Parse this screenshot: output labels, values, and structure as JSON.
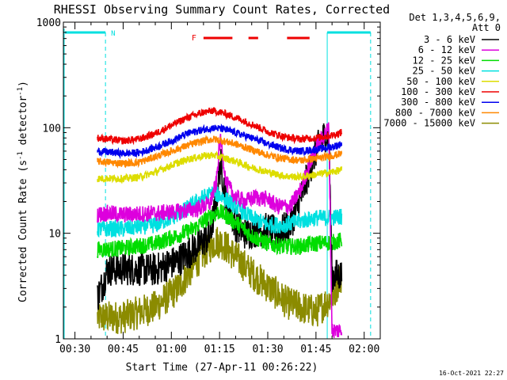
{
  "chart_data": {
    "type": "line",
    "title": "RHESSI Observing Summary Count Rates, Corrected",
    "xlabel": "Start Time (27-Apr-11 00:26:22)",
    "ylabel": "Corrected Count Rate (s",
    "ylabel_sup1": "-1",
    "ylabel_mid": " detector",
    "ylabel_sup2": "-1",
    "ylabel_end": ")",
    "yscale": "log",
    "ylim": [
      1,
      1000
    ],
    "xlim_minutes": [
      26.4,
      125.0
    ],
    "x_ticks": [
      {
        "t": 30,
        "label": "00:30"
      },
      {
        "t": 45,
        "label": "00:45"
      },
      {
        "t": 60,
        "label": "01:00"
      },
      {
        "t": 75,
        "label": "01:15"
      },
      {
        "t": 90,
        "label": "01:30"
      },
      {
        "t": 105,
        "label": "01:45"
      },
      {
        "t": 120,
        "label": "02:00"
      }
    ],
    "y_ticks": [
      {
        "v": 1,
        "label": "1"
      },
      {
        "v": 10,
        "label": "10"
      },
      {
        "v": 100,
        "label": "100"
      },
      {
        "v": 1000,
        "label": "1000"
      }
    ],
    "legend_header": [
      "Det 1,3,4,5,6,9,",
      "Att 0"
    ],
    "legend_position": "right",
    "series": [
      {
        "name": "3 - 6 keV",
        "color": "#000000",
        "points": [
          [
            37,
            2.5
          ],
          [
            39,
            3.5
          ],
          [
            40,
            4.5
          ],
          [
            45,
            4.6
          ],
          [
            55,
            4.5
          ],
          [
            62,
            5.5
          ],
          [
            68,
            7.5
          ],
          [
            72,
            9.5
          ],
          [
            74,
            20
          ],
          [
            75,
            40
          ],
          [
            75.5,
            45
          ],
          [
            77,
            20
          ],
          [
            80,
            12
          ],
          [
            83,
            10
          ],
          [
            86,
            10.5
          ],
          [
            90,
            11
          ],
          [
            93,
            10
          ],
          [
            97,
            12
          ],
          [
            100,
            20
          ],
          [
            103,
            40
          ],
          [
            105,
            60
          ],
          [
            107,
            80
          ],
          [
            109,
            90
          ],
          [
            110,
            4
          ],
          [
            113,
            4
          ]
        ]
      },
      {
        "name": "6 - 12 keV",
        "color": "#dd00dd",
        "points": [
          [
            37,
            15
          ],
          [
            40,
            15.5
          ],
          [
            45,
            15
          ],
          [
            55,
            15.5
          ],
          [
            62,
            16
          ],
          [
            68,
            17
          ],
          [
            72,
            19
          ],
          [
            74,
            30
          ],
          [
            75,
            70
          ],
          [
            75.5,
            75
          ],
          [
            77,
            30
          ],
          [
            80,
            22
          ],
          [
            83,
            20
          ],
          [
            86,
            22
          ],
          [
            90,
            21
          ],
          [
            93,
            18
          ],
          [
            97,
            18
          ],
          [
            100,
            25
          ],
          [
            103,
            45
          ],
          [
            105,
            65
          ],
          [
            107,
            80
          ],
          [
            109,
            100
          ],
          [
            110,
            1.2
          ],
          [
            113,
            1.2
          ]
        ]
      },
      {
        "name": "12 - 25 keV",
        "color": "#00dd00",
        "points": [
          [
            37,
            7
          ],
          [
            45,
            7.2
          ],
          [
            55,
            8
          ],
          [
            62,
            9.5
          ],
          [
            67,
            11
          ],
          [
            70,
            13
          ],
          [
            73,
            15
          ],
          [
            75,
            16
          ],
          [
            78,
            14
          ],
          [
            81,
            12
          ],
          [
            85,
            9.5
          ],
          [
            90,
            8
          ],
          [
            95,
            7.5
          ],
          [
            100,
            7.5
          ],
          [
            105,
            8
          ],
          [
            110,
            8.2
          ],
          [
            113,
            8.5
          ]
        ]
      },
      {
        "name": "25 - 50 keV",
        "color": "#00e0e0",
        "points": [
          [
            37,
            11
          ],
          [
            45,
            11
          ],
          [
            55,
            12
          ],
          [
            62,
            15
          ],
          [
            67,
            19
          ],
          [
            70,
            22
          ],
          [
            73,
            24
          ],
          [
            75,
            23
          ],
          [
            78,
            20
          ],
          [
            81,
            17
          ],
          [
            85,
            14
          ],
          [
            90,
            12
          ],
          [
            95,
            12
          ],
          [
            100,
            13
          ],
          [
            105,
            14
          ],
          [
            110,
            14
          ],
          [
            113,
            14.5
          ]
        ]
      },
      {
        "name": "50 - 100 keV",
        "color": "#dddd00",
        "points": [
          [
            37,
            33
          ],
          [
            45,
            33
          ],
          [
            50,
            34
          ],
          [
            55,
            38
          ],
          [
            60,
            44
          ],
          [
            65,
            50
          ],
          [
            70,
            54
          ],
          [
            73,
            55
          ],
          [
            76,
            52
          ],
          [
            80,
            48
          ],
          [
            85,
            42
          ],
          [
            90,
            38
          ],
          [
            95,
            35
          ],
          [
            100,
            34
          ],
          [
            105,
            36
          ],
          [
            110,
            38
          ],
          [
            113,
            40
          ]
        ]
      },
      {
        "name": "100 - 300 keV",
        "color": "#ee0000",
        "points": [
          [
            37,
            80
          ],
          [
            45,
            75
          ],
          [
            50,
            78
          ],
          [
            55,
            88
          ],
          [
            60,
            105
          ],
          [
            65,
            125
          ],
          [
            70,
            140
          ],
          [
            73,
            145
          ],
          [
            76,
            138
          ],
          [
            80,
            125
          ],
          [
            85,
            108
          ],
          [
            90,
            92
          ],
          [
            95,
            82
          ],
          [
            100,
            78
          ],
          [
            105,
            80
          ],
          [
            110,
            85
          ],
          [
            113,
            90
          ]
        ]
      },
      {
        "name": "300 - 800 keV",
        "color": "#0000ee",
        "points": [
          [
            37,
            60
          ],
          [
            45,
            57
          ],
          [
            50,
            58
          ],
          [
            55,
            65
          ],
          [
            60,
            75
          ],
          [
            65,
            88
          ],
          [
            70,
            96
          ],
          [
            73,
            100
          ],
          [
            76,
            97
          ],
          [
            80,
            90
          ],
          [
            85,
            80
          ],
          [
            90,
            70
          ],
          [
            95,
            63
          ],
          [
            100,
            60
          ],
          [
            105,
            62
          ],
          [
            110,
            66
          ],
          [
            113,
            70
          ]
        ]
      },
      {
        "name": "800 - 7000 keV",
        "color": "#ff8800",
        "points": [
          [
            37,
            48
          ],
          [
            45,
            46
          ],
          [
            50,
            47
          ],
          [
            55,
            53
          ],
          [
            60,
            60
          ],
          [
            65,
            68
          ],
          [
            70,
            75
          ],
          [
            73,
            78
          ],
          [
            76,
            75
          ],
          [
            80,
            70
          ],
          [
            85,
            62
          ],
          [
            90,
            55
          ],
          [
            95,
            51
          ],
          [
            100,
            49
          ],
          [
            105,
            51
          ],
          [
            110,
            54
          ],
          [
            113,
            57
          ]
        ]
      },
      {
        "name": "7000 - 15000 keV",
        "color": "#8b8b00",
        "points": [
          [
            37,
            1.6
          ],
          [
            45,
            1.6
          ],
          [
            55,
            2
          ],
          [
            62,
            3
          ],
          [
            66,
            4.5
          ],
          [
            70,
            6.5
          ],
          [
            74,
            8.5
          ],
          [
            76,
            8
          ],
          [
            80,
            6
          ],
          [
            84,
            4.5
          ],
          [
            88,
            3.5
          ],
          [
            92,
            2.8
          ],
          [
            96,
            2.2
          ],
          [
            100,
            2
          ],
          [
            105,
            1.8
          ],
          [
            110,
            2.5
          ],
          [
            113,
            4
          ]
        ]
      }
    ],
    "annotations": {
      "n_label": "N",
      "f_label": "F",
      "flare_segments_minutes": [
        [
          70,
          79
        ],
        [
          84,
          87
        ],
        [
          96,
          103
        ]
      ],
      "night_intervals_minutes": [
        [
          26.4,
          39.5
        ],
        [
          108.5,
          122
        ]
      ]
    },
    "timestamp": "16-Oct-2021 22:27"
  }
}
